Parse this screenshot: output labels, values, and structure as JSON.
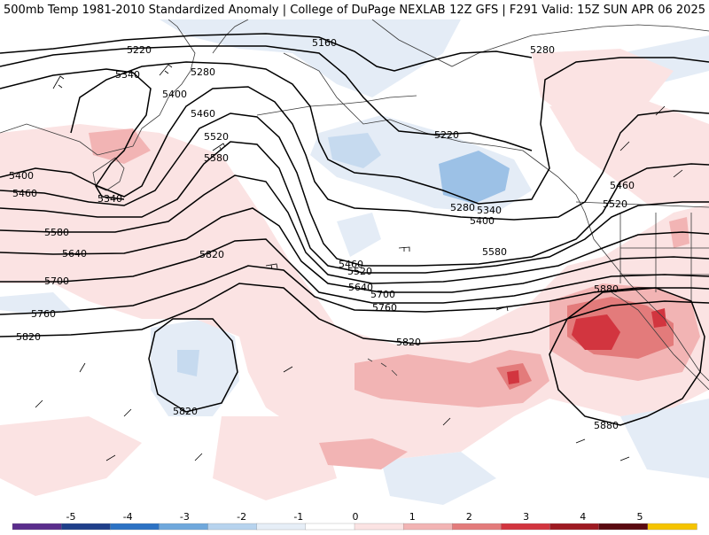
{
  "header": {
    "left": "500mb Temp 1981-2010 Standardized Anomaly | College of DuPage NEXLAB",
    "right": "12Z GFS | F291 Valid: 15Z SUN APR 06 2025"
  },
  "colors": {
    "contour": "#000000",
    "coast": "#3a3a3a",
    "warm": [
      "#fbe3e3",
      "#f2b4b4",
      "#e37b7b",
      "#d2353f",
      "#9e1a22"
    ],
    "cool": [
      "#e4ecf6",
      "#c6daef",
      "#9cc1e6",
      "#5c98d6"
    ]
  },
  "contour_labels": [
    "5160",
    "5220",
    "5280",
    "5340",
    "5400",
    "5460",
    "5520",
    "5580",
    "5640",
    "5700",
    "5760",
    "5820",
    "5880"
  ],
  "map_labels": {
    "l5220_a": "5220",
    "l5160": "5160",
    "l5280_ne": "5280",
    "l5340_w": "5340",
    "l5280_w": "5280",
    "l5400_w": "5400",
    "l5460_w": "5460",
    "l5520_w": "5520",
    "l5580_w": "5580",
    "l5340_low": "5340",
    "l5400_far": "5400",
    "l5460_far": "5460",
    "l5580_far": "5580",
    "l5640_far": "5640",
    "l5700_far": "5700",
    "l5760_far": "5760",
    "l5820_far": "5820",
    "l5820_mid": "5820",
    "l5820_c": "5820",
    "l5220_c": "5220",
    "l5280_c": "5280",
    "l5340_c": "5340",
    "l5400_c": "5400",
    "l5460_c": "5460",
    "l5520_c": "5520",
    "l5580_c": "5580",
    "l5640_c": "5640",
    "l5700_c": "5700",
    "l5760_c": "5760",
    "l5460_e": "5460",
    "l5520_e": "5520",
    "l5880_e": "5880",
    "l5880_se": "5880",
    "l5820_low": "5820"
  },
  "colorbar": {
    "ticks": [
      "-5",
      "-4",
      "-3",
      "-2",
      "-1",
      "0",
      "1",
      "2",
      "3",
      "4",
      "5"
    ],
    "colors": [
      "#5a2d8c",
      "#1f3f8a",
      "#2c72c4",
      "#6fa8dc",
      "#b7d3ee",
      "#e6eef7",
      "#ffffff",
      "#fbe3e3",
      "#f2b4b4",
      "#e37b7b",
      "#d2353f",
      "#9e1a22",
      "#5a0a10",
      "#f5c400"
    ]
  }
}
